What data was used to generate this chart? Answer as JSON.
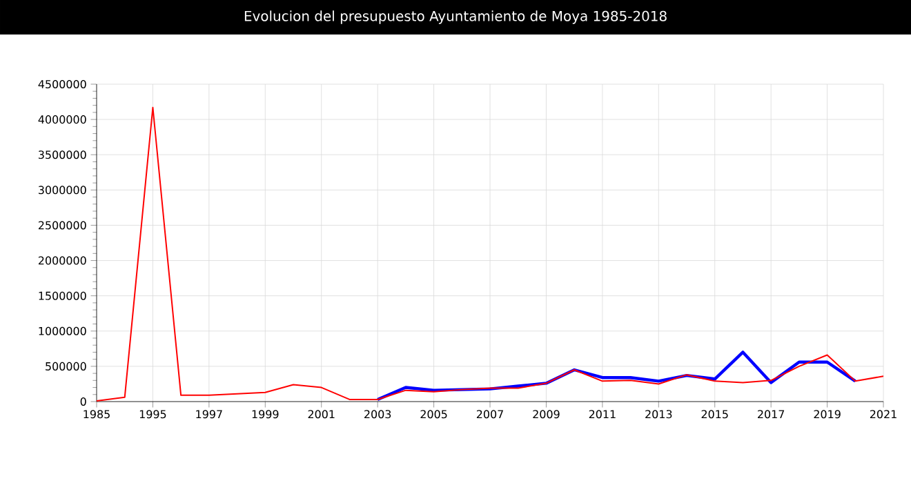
{
  "chart_data": {
    "type": "line",
    "title": "Evolucion del presupuesto Ayuntamiento de Moya 1985-2018",
    "categories": [
      "1985",
      null,
      "1995",
      null,
      "1997",
      null,
      "1999",
      null,
      "2001",
      null,
      "2003",
      null,
      "2005",
      null,
      "2007",
      null,
      "2009",
      null,
      "2011",
      null,
      "2013",
      null,
      "2015",
      null,
      "2017",
      null,
      "2019",
      null,
      "2021"
    ],
    "series": [
      {
        "color": "#0000ff",
        "values": [
          null,
          null,
          null,
          null,
          null,
          null,
          null,
          null,
          null,
          null,
          30000,
          200000,
          160000,
          170000,
          180000,
          220000,
          260000,
          450000,
          340000,
          340000,
          290000,
          370000,
          320000,
          700000,
          270000,
          560000,
          560000,
          290000,
          null
        ]
      },
      {
        "color": "#ff0000",
        "values": [
          10000,
          60000,
          4170000,
          90000,
          90000,
          110000,
          130000,
          240000,
          200000,
          30000,
          30000,
          160000,
          140000,
          170000,
          190000,
          190000,
          260000,
          450000,
          290000,
          300000,
          250000,
          380000,
          290000,
          270000,
          300000,
          500000,
          660000,
          290000,
          360000
        ]
      }
    ],
    "ylim": [
      0,
      4500000
    ],
    "yticks": [
      0,
      500000,
      1000000,
      1500000,
      2000000,
      2500000,
      3000000,
      3500000,
      4000000,
      4500000
    ],
    "grid": true,
    "marker": "none",
    "line_style": "solid"
  }
}
